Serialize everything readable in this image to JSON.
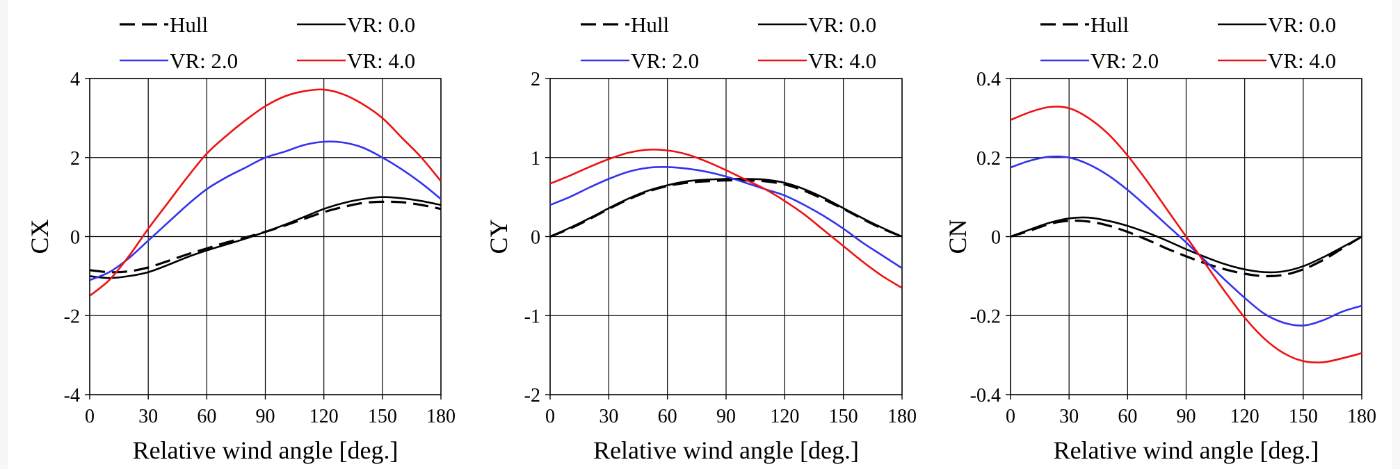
{
  "chart_data": [
    {
      "type": "line",
      "xlabel": "Relative wind angle [deg.]",
      "ylabel": "CX",
      "xlim": [
        0,
        180
      ],
      "ylim": [
        -4,
        4
      ],
      "xticks": [
        "0",
        "30",
        "60",
        "90",
        "120",
        "150",
        "180"
      ],
      "yticks": [
        "4",
        "2",
        "0",
        "-2",
        "-4"
      ],
      "grid": true,
      "legend": "top",
      "series": [
        {
          "name": "Hull",
          "color": "#000000",
          "dash": "dashed",
          "x": [
            0,
            10,
            20,
            30,
            40,
            50,
            60,
            70,
            80,
            90,
            100,
            110,
            120,
            130,
            140,
            150,
            160,
            170,
            180
          ],
          "y": [
            -0.85,
            -0.9,
            -0.88,
            -0.78,
            -0.62,
            -0.45,
            -0.3,
            -0.15,
            -0.02,
            0.12,
            0.28,
            0.45,
            0.62,
            0.75,
            0.85,
            0.88,
            0.87,
            0.8,
            0.7
          ]
        },
        {
          "name": "VR: 0.0",
          "color": "#000000",
          "dash": "solid",
          "x": [
            0,
            10,
            20,
            30,
            40,
            50,
            60,
            70,
            80,
            90,
            100,
            110,
            120,
            130,
            140,
            150,
            160,
            170,
            180
          ],
          "y": [
            -1.0,
            -1.05,
            -1.0,
            -0.9,
            -0.72,
            -0.52,
            -0.35,
            -0.2,
            -0.05,
            0.12,
            0.3,
            0.5,
            0.7,
            0.85,
            0.95,
            1.0,
            0.97,
            0.9,
            0.8
          ]
        },
        {
          "name": "VR: 2.0",
          "color": "#3333ee",
          "dash": "solid",
          "x": [
            0,
            10,
            20,
            30,
            40,
            50,
            60,
            70,
            80,
            90,
            100,
            110,
            120,
            130,
            140,
            150,
            160,
            170,
            180
          ],
          "y": [
            -1.1,
            -0.9,
            -0.55,
            -0.1,
            0.35,
            0.8,
            1.2,
            1.5,
            1.75,
            2.0,
            2.15,
            2.32,
            2.4,
            2.38,
            2.25,
            2.0,
            1.7,
            1.35,
            0.95
          ]
        },
        {
          "name": "VR: 4.0",
          "color": "#ee1111",
          "dash": "solid",
          "x": [
            0,
            10,
            20,
            30,
            40,
            50,
            60,
            70,
            80,
            90,
            100,
            110,
            120,
            130,
            140,
            150,
            160,
            170,
            180
          ],
          "y": [
            -1.5,
            -1.1,
            -0.5,
            0.2,
            0.85,
            1.5,
            2.1,
            2.55,
            2.95,
            3.3,
            3.55,
            3.68,
            3.72,
            3.6,
            3.35,
            3.0,
            2.5,
            2.0,
            1.4
          ]
        }
      ]
    },
    {
      "type": "line",
      "xlabel": "Relative wind angle [deg.]",
      "ylabel": "CY",
      "xlim": [
        0,
        180
      ],
      "ylim": [
        -2,
        2
      ],
      "xticks": [
        "0",
        "30",
        "60",
        "90",
        "120",
        "150",
        "180"
      ],
      "yticks": [
        "2",
        "1",
        "0",
        "-1",
        "-2"
      ],
      "grid": true,
      "legend": "top",
      "series": [
        {
          "name": "Hull",
          "color": "#000000",
          "dash": "dashed",
          "x": [
            0,
            10,
            20,
            30,
            40,
            50,
            60,
            70,
            80,
            90,
            100,
            110,
            120,
            130,
            140,
            150,
            160,
            170,
            180
          ],
          "y": [
            0.0,
            0.1,
            0.22,
            0.35,
            0.47,
            0.57,
            0.64,
            0.68,
            0.7,
            0.71,
            0.71,
            0.7,
            0.66,
            0.58,
            0.47,
            0.35,
            0.22,
            0.1,
            0.0
          ]
        },
        {
          "name": "VR: 0.0",
          "color": "#000000",
          "dash": "solid",
          "x": [
            0,
            10,
            20,
            30,
            40,
            50,
            60,
            70,
            80,
            90,
            100,
            110,
            120,
            130,
            140,
            150,
            160,
            170,
            180
          ],
          "y": [
            0.0,
            0.11,
            0.23,
            0.36,
            0.48,
            0.58,
            0.65,
            0.7,
            0.72,
            0.73,
            0.73,
            0.72,
            0.68,
            0.6,
            0.49,
            0.36,
            0.23,
            0.11,
            0.0
          ]
        },
        {
          "name": "VR: 2.0",
          "color": "#3333ee",
          "dash": "solid",
          "x": [
            0,
            10,
            20,
            30,
            40,
            50,
            60,
            70,
            80,
            90,
            100,
            110,
            120,
            130,
            140,
            150,
            160,
            170,
            180
          ],
          "y": [
            0.4,
            0.5,
            0.62,
            0.73,
            0.82,
            0.87,
            0.88,
            0.86,
            0.82,
            0.76,
            0.68,
            0.6,
            0.52,
            0.4,
            0.26,
            0.1,
            -0.08,
            -0.24,
            -0.4
          ]
        },
        {
          "name": "VR: 4.0",
          "color": "#ee1111",
          "dash": "solid",
          "x": [
            0,
            10,
            20,
            30,
            40,
            50,
            60,
            70,
            80,
            90,
            100,
            110,
            120,
            130,
            140,
            150,
            160,
            170,
            180
          ],
          "y": [
            0.67,
            0.77,
            0.88,
            0.98,
            1.06,
            1.1,
            1.09,
            1.04,
            0.95,
            0.84,
            0.72,
            0.6,
            0.45,
            0.28,
            0.08,
            -0.12,
            -0.32,
            -0.5,
            -0.65
          ]
        }
      ]
    },
    {
      "type": "line",
      "xlabel": "Relative wind angle [deg.]",
      "ylabel": "CN",
      "xlim": [
        0,
        180
      ],
      "ylim": [
        -0.4,
        0.4
      ],
      "xticks": [
        "0",
        "30",
        "60",
        "90",
        "120",
        "150",
        "180"
      ],
      "yticks": [
        "0.4",
        "0.2",
        "0",
        "-0.2",
        "-0.4"
      ],
      "grid": true,
      "legend": "top",
      "series": [
        {
          "name": "Hull",
          "color": "#000000",
          "dash": "dashed",
          "x": [
            0,
            10,
            20,
            30,
            40,
            50,
            60,
            70,
            80,
            90,
            100,
            110,
            120,
            130,
            140,
            150,
            160,
            170,
            180
          ],
          "y": [
            0.0,
            0.015,
            0.032,
            0.04,
            0.038,
            0.028,
            0.012,
            -0.008,
            -0.03,
            -0.05,
            -0.068,
            -0.083,
            -0.094,
            -0.1,
            -0.097,
            -0.083,
            -0.06,
            -0.03,
            0.0
          ]
        },
        {
          "name": "VR: 0.0",
          "color": "#000000",
          "dash": "solid",
          "x": [
            0,
            10,
            20,
            30,
            40,
            50,
            60,
            70,
            80,
            90,
            100,
            110,
            120,
            130,
            140,
            150,
            160,
            170,
            180
          ],
          "y": [
            0.0,
            0.018,
            0.035,
            0.046,
            0.048,
            0.04,
            0.027,
            0.01,
            -0.01,
            -0.032,
            -0.052,
            -0.07,
            -0.083,
            -0.09,
            -0.088,
            -0.075,
            -0.053,
            -0.027,
            0.0
          ]
        },
        {
          "name": "VR: 2.0",
          "color": "#3333ee",
          "dash": "solid",
          "x": [
            0,
            10,
            20,
            30,
            40,
            50,
            60,
            70,
            80,
            90,
            100,
            110,
            120,
            130,
            140,
            150,
            160,
            170,
            180
          ],
          "y": [
            0.175,
            0.192,
            0.202,
            0.2,
            0.183,
            0.155,
            0.118,
            0.075,
            0.03,
            -0.015,
            -0.062,
            -0.11,
            -0.155,
            -0.195,
            -0.218,
            -0.225,
            -0.212,
            -0.19,
            -0.175
          ]
        },
        {
          "name": "VR: 4.0",
          "color": "#ee1111",
          "dash": "solid",
          "x": [
            0,
            10,
            20,
            30,
            40,
            50,
            60,
            70,
            80,
            90,
            100,
            110,
            120,
            130,
            140,
            150,
            160,
            170,
            180
          ],
          "y": [
            0.295,
            0.315,
            0.328,
            0.325,
            0.3,
            0.26,
            0.205,
            0.14,
            0.07,
            0.0,
            -0.07,
            -0.14,
            -0.205,
            -0.258,
            -0.295,
            -0.315,
            -0.318,
            -0.308,
            -0.295
          ]
        }
      ]
    }
  ]
}
